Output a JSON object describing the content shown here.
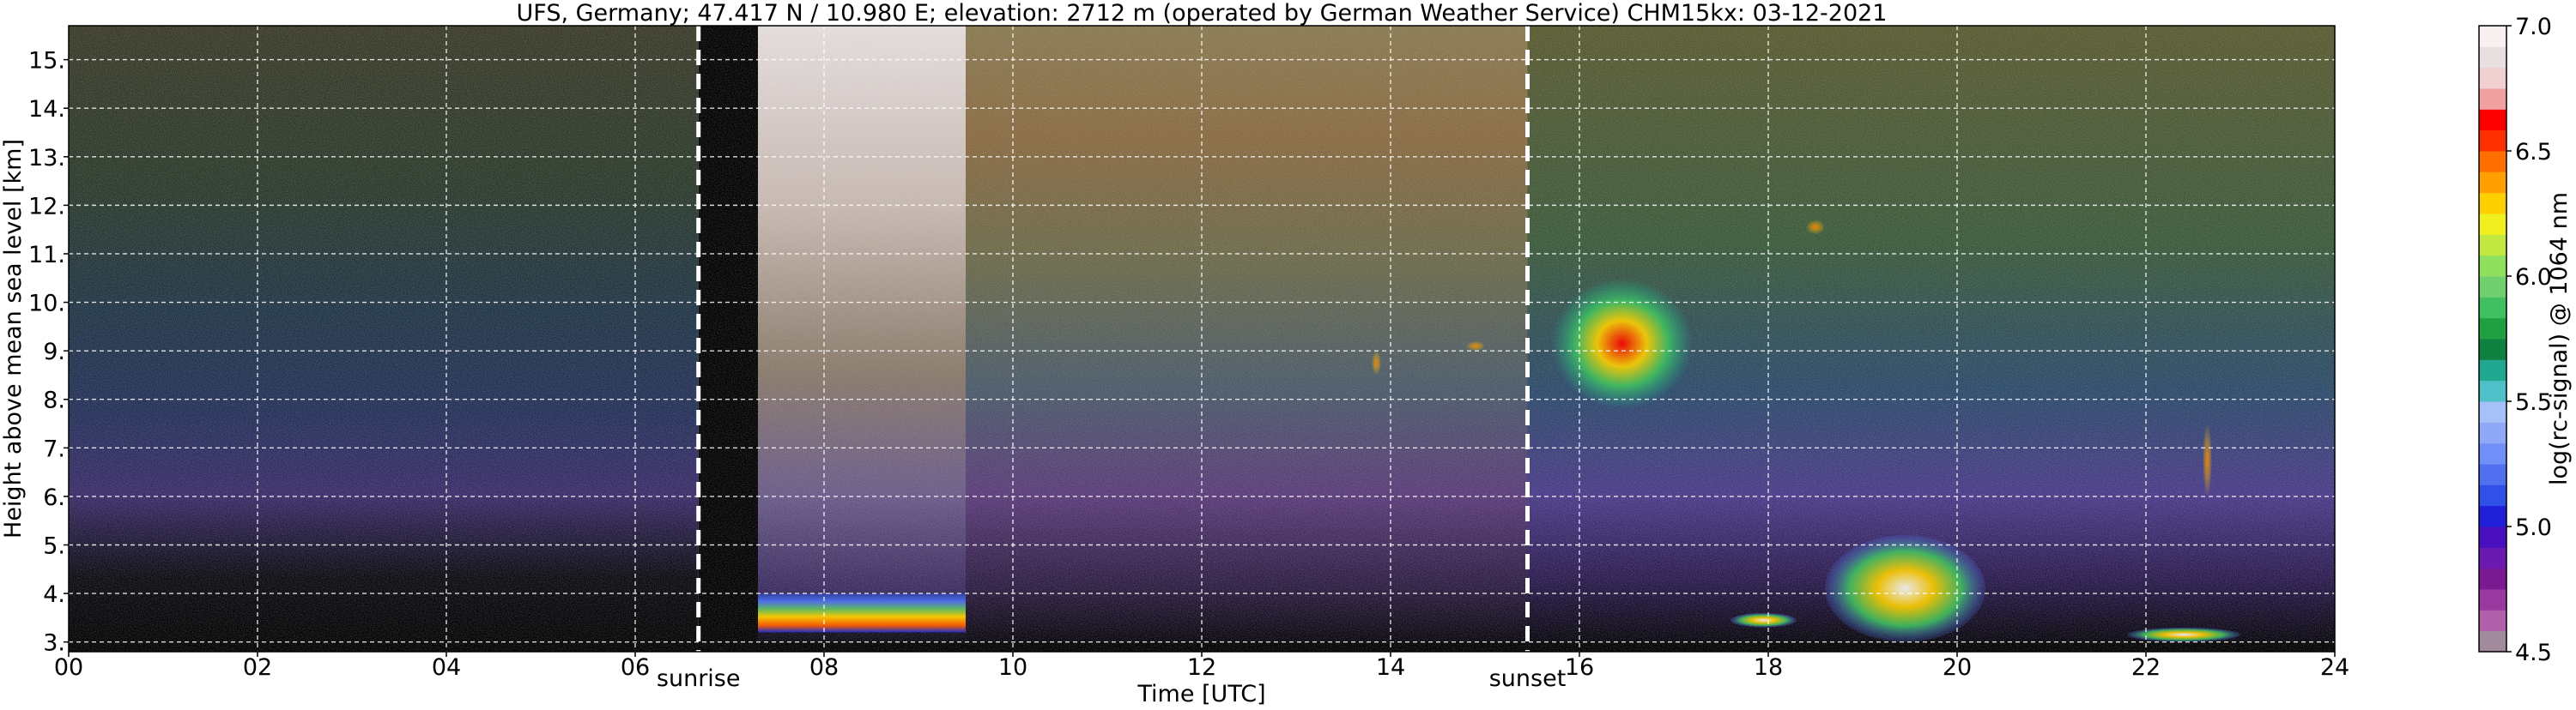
{
  "chart_data": {
    "type": "heatmap",
    "title": "UFS, Germany; 47.417 N / 10.980 E; elevation: 2712 m  (operated by German Weather Service)    CHM15kx: 03-12-2021",
    "xlabel": "Time [UTC]",
    "ylabel": "Height above mean sea level [km]",
    "xlim": [
      0,
      24
    ],
    "ylim": [
      2.8,
      15.7
    ],
    "x_ticks": [
      0,
      2,
      4,
      6,
      8,
      10,
      12,
      14,
      16,
      18,
      20,
      22,
      24
    ],
    "x_tick_labels": [
      "00",
      "02",
      "04",
      "06",
      "08",
      "10",
      "12",
      "14",
      "16",
      "18",
      "20",
      "22",
      "24"
    ],
    "y_ticks": [
      3,
      4,
      5,
      6,
      7,
      8,
      9,
      10,
      11,
      12,
      13,
      14,
      15
    ],
    "y_tick_labels": [
      "3.",
      "4.",
      "5.",
      "6.",
      "7.",
      "8.",
      "9.",
      "10.",
      "11.",
      "12.",
      "13.",
      "14.",
      "15."
    ],
    "grid": true,
    "colorbar": {
      "label": "log(rc-signal) @ 1064 nm",
      "range": [
        4.5,
        7.0
      ],
      "ticks": [
        4.5,
        5.0,
        5.5,
        6.0,
        6.5,
        7.0
      ],
      "tick_labels": [
        "4.5",
        "5.0",
        "5.5",
        "6.0",
        "6.5",
        "7.0"
      ],
      "colors": [
        "#a08a9c",
        "#b060a8",
        "#9a3aa0",
        "#7a1a90",
        "#6a1ab0",
        "#4a10c0",
        "#2020d8",
        "#3050e8",
        "#5070f0",
        "#7090f8",
        "#90a8f8",
        "#a8c0f8",
        "#50c0c8",
        "#20a890",
        "#108040",
        "#20a040",
        "#40c060",
        "#70d070",
        "#90e060",
        "#c0e840",
        "#f0f020",
        "#ffd000",
        "#ffa000",
        "#ff7000",
        "#ff3000",
        "#ff0000",
        "#f0a0a0",
        "#f0d0d0",
        "#e8e0e0",
        "#f8f0f0"
      ]
    },
    "annotations": [
      {
        "x": 6.67,
        "label": "sunrise"
      },
      {
        "x": 15.45,
        "label": "sunset"
      }
    ],
    "features": [
      {
        "kind": "high_noise",
        "x": [
          0.0,
          6.67
        ]
      },
      {
        "kind": "high_noise",
        "x": [
          7.3,
          15.45
        ]
      },
      {
        "kind": "strong_signal_band",
        "x": [
          7.3,
          9.5
        ],
        "y": [
          3.2,
          4.0
        ]
      },
      {
        "kind": "cirrus_cloud",
        "x": [
          15.7,
          17.2
        ],
        "y": [
          7.8,
          10.5
        ]
      },
      {
        "kind": "thin_cloud",
        "x": [
          13.8,
          13.9
        ],
        "y": [
          8.5,
          9.0
        ]
      },
      {
        "kind": "thin_cloud",
        "x": [
          14.8,
          15.0
        ],
        "y": [
          9.0,
          9.2
        ]
      },
      {
        "kind": "thin_cloud",
        "x": [
          18.4,
          18.6
        ],
        "y": [
          11.4,
          11.7
        ]
      },
      {
        "kind": "low_cloud",
        "x": [
          18.6,
          20.3
        ],
        "y": [
          3.0,
          5.2
        ]
      },
      {
        "kind": "low_cloud",
        "x": [
          17.6,
          18.3
        ],
        "y": [
          3.3,
          3.6
        ]
      },
      {
        "kind": "low_cloud",
        "x": [
          21.8,
          23.0
        ],
        "y": [
          3.0,
          3.3
        ]
      },
      {
        "kind": "thin_cloud",
        "x": [
          22.6,
          22.7
        ],
        "y": [
          6.0,
          7.5
        ]
      }
    ]
  }
}
